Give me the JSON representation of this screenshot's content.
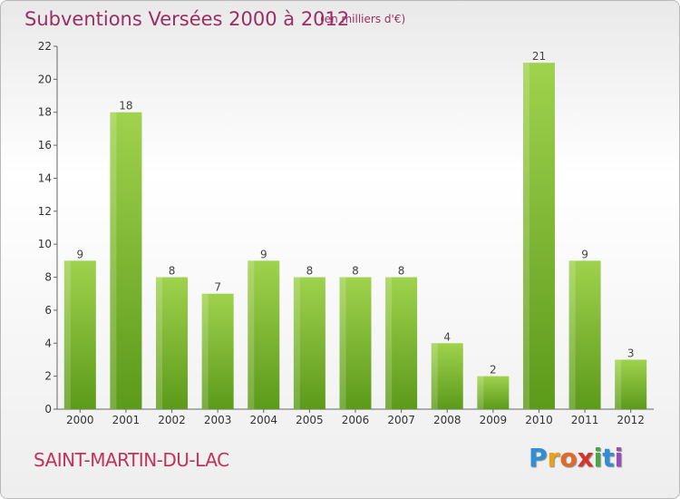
{
  "header": {
    "title": "Subventions Versées 2000 à 2012",
    "subtitle": "(en milliers d'€)"
  },
  "footer": {
    "commune": "SAINT-MARTIN-DU-LAC",
    "brand_letters": [
      "P",
      "r",
      "o",
      "x",
      "i",
      "t",
      "i"
    ],
    "brand_colors": [
      "#2e8fd6",
      "#e8a317",
      "#e06a2c",
      "#d8322c",
      "#49a644",
      "#2e8fd6",
      "#9b4cb8"
    ]
  },
  "colors": {
    "bar_light": "#9fd24d",
    "bar_dark": "#5c9a1a",
    "title": "#9a2f63",
    "commune": "#c2325b"
  },
  "chart_data": {
    "type": "bar",
    "categories": [
      "2000",
      "2001",
      "2002",
      "2003",
      "2004",
      "2005",
      "2006",
      "2007",
      "2008",
      "2009",
      "2010",
      "2011",
      "2012"
    ],
    "values": [
      9,
      18,
      8,
      7,
      9,
      8,
      8,
      8,
      4,
      2,
      21,
      9,
      3
    ],
    "ylim": [
      0,
      22
    ],
    "yticks": [
      0,
      2,
      4,
      6,
      8,
      10,
      12,
      14,
      16,
      18,
      20,
      22
    ],
    "grid": false,
    "legend": "none"
  }
}
